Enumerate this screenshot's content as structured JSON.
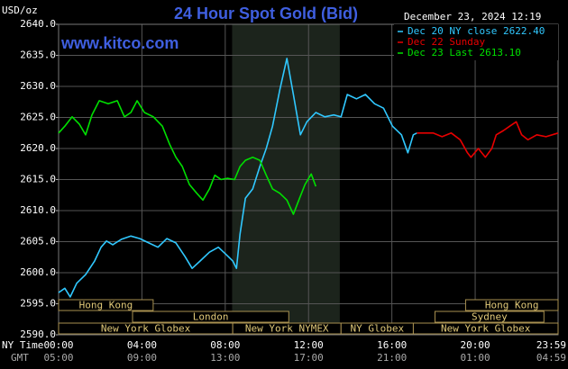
{
  "chart_data": {
    "type": "line",
    "title": "24 Hour Spot Gold (Bid)",
    "subtitle": "www.kitco.com",
    "timestamp": "December 23, 2024 12:19",
    "y_label": "USD/oz",
    "x_label": "NY Time",
    "x2_label": "GMT",
    "title_color": "#3f5fe0",
    "grid": true,
    "xlim": [
      0,
      23.98
    ],
    "ylim": [
      2590,
      2640
    ],
    "xticks": [
      {
        "value": 0,
        "label": "00:00"
      },
      {
        "value": 4,
        "label": "04:00"
      },
      {
        "value": 8,
        "label": "08:00"
      },
      {
        "value": 12,
        "label": "12:00"
      },
      {
        "value": 16,
        "label": "16:00"
      },
      {
        "value": 20,
        "label": "20:00"
      },
      {
        "value": 23.98,
        "label": "23:59"
      }
    ],
    "xticks_gmt": [
      "05:00",
      "09:00",
      "13:00",
      "17:00",
      "21:00",
      "01:00",
      "04:59"
    ],
    "yticks": [
      {
        "value": 2590,
        "label": "2590.0"
      },
      {
        "value": 2595,
        "label": "2595.0"
      },
      {
        "value": 2600,
        "label": "2600.0"
      },
      {
        "value": 2605,
        "label": "2605.0"
      },
      {
        "value": 2610,
        "label": "2610.0"
      },
      {
        "value": 2615,
        "label": "2615.0"
      },
      {
        "value": 2620,
        "label": "2620.0"
      },
      {
        "value": 2625,
        "label": "2625.0"
      },
      {
        "value": 2630,
        "label": "2630.0"
      },
      {
        "value": 2635,
        "label": "2635.0"
      },
      {
        "value": 2640,
        "label": "2640.0"
      }
    ],
    "shaded_span": [
      8.33,
      13.5
    ],
    "sessions": [
      {
        "label": "Hong Kong",
        "start": 0,
        "end": 4.54
      },
      {
        "label": "London",
        "start": 3.55,
        "end": 11.05
      },
      {
        "label": "New York Globex",
        "start": 0,
        "end": 8.36
      },
      {
        "label": "New York NYMEX",
        "start": 8.36,
        "end": 13.56
      },
      {
        "label": "NY Globex",
        "start": 13.56,
        "end": 17.03
      },
      {
        "label": "New York Globex",
        "start": 17.03,
        "end": 23.98
      },
      {
        "label": "Hong Kong",
        "start": 19.54,
        "end": 23.98
      },
      {
        "label": "Sydney",
        "start": 18.07,
        "end": 23.3
      }
    ],
    "series": [
      {
        "name": "Dec 20 NY close 2622.40",
        "color": "#30c8ff",
        "x": [
          0,
          0.3,
          0.56,
          0.87,
          1.3,
          1.73,
          2.04,
          2.3,
          2.6,
          3.03,
          3.47,
          3.9,
          4.33,
          4.77,
          5.2,
          5.63,
          6.07,
          6.41,
          6.8,
          7.24,
          7.67,
          8.02,
          8.36,
          8.54,
          8.71,
          8.97,
          9.32,
          9.66,
          9.97,
          10.27,
          10.62,
          10.96,
          11.27,
          11.61,
          11.92,
          12.35,
          12.78,
          13.21,
          13.56,
          13.86,
          14.3,
          14.73,
          15.17,
          15.6,
          16.03,
          16.46,
          16.77,
          17.03,
          17.2
        ],
        "values": [
          2596.8,
          2597.5,
          2596.1,
          2598.3,
          2599.7,
          2601.9,
          2604.1,
          2605.1,
          2604.5,
          2605.4,
          2605.9,
          2605.5,
          2604.8,
          2604.1,
          2605.5,
          2604.8,
          2602.6,
          2600.7,
          2601.9,
          2603.3,
          2604.1,
          2603.0,
          2601.9,
          2600.7,
          2606.2,
          2612.0,
          2613.5,
          2617.1,
          2620.0,
          2623.6,
          2629.4,
          2634.5,
          2628.7,
          2622.2,
          2624.3,
          2625.8,
          2625.1,
          2625.4,
          2625.1,
          2628.7,
          2628.0,
          2628.7,
          2627.2,
          2626.5,
          2623.6,
          2622.2,
          2619.3,
          2622.2,
          2622.5
        ]
      },
      {
        "name": "Dec 22 Sunday",
        "color": "#e80000",
        "x": [
          17.2,
          17.98,
          18.41,
          18.85,
          19.28,
          19.63,
          19.8,
          20.15,
          20.49,
          20.8,
          21.01,
          21.36,
          21.66,
          21.97,
          22.23,
          22.53,
          22.96,
          23.4,
          23.98
        ],
        "values": [
          2622.5,
          2622.5,
          2621.9,
          2622.5,
          2621.4,
          2619.3,
          2618.6,
          2620.0,
          2618.6,
          2620.0,
          2622.2,
          2622.9,
          2623.6,
          2624.3,
          2622.2,
          2621.4,
          2622.2,
          2621.9,
          2622.5
        ]
      },
      {
        "name": "Dec 23 Last 2613.10",
        "color": "#00e000",
        "x": [
          0,
          0.3,
          0.65,
          1.0,
          1.3,
          1.6,
          1.95,
          2.38,
          2.82,
          3.16,
          3.47,
          3.77,
          4.12,
          4.55,
          4.98,
          5.33,
          5.63,
          5.94,
          6.28,
          6.63,
          6.93,
          7.24,
          7.5,
          7.8,
          8.1,
          8.45,
          8.71,
          8.97,
          9.32,
          9.66,
          9.97,
          10.27,
          10.62,
          10.96,
          11.27,
          11.57,
          11.83,
          12.13,
          12.35
        ],
        "values": [
          2622.5,
          2623.6,
          2625.1,
          2623.9,
          2622.2,
          2625.4,
          2627.7,
          2627.2,
          2627.7,
          2625.1,
          2625.8,
          2627.7,
          2625.8,
          2625.1,
          2623.6,
          2620.7,
          2618.6,
          2617.1,
          2614.2,
          2612.8,
          2611.7,
          2613.5,
          2615.7,
          2615.0,
          2615.2,
          2615.0,
          2617.1,
          2618.1,
          2618.6,
          2618.1,
          2615.7,
          2613.5,
          2612.8,
          2611.7,
          2609.4,
          2612.0,
          2614.2,
          2615.9,
          2613.9
        ]
      }
    ]
  }
}
